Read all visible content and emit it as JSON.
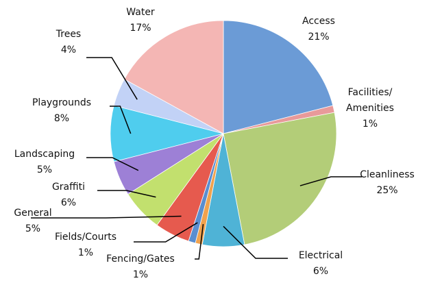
{
  "chart_data": {
    "type": "pie",
    "categories": [
      "Access",
      "Facilities/ Amenities",
      "Cleanliness",
      "Electrical",
      "Fencing/Gates",
      "Fields/Courts",
      "General",
      "Graffiti",
      "Landscaping",
      "Playgrounds",
      "Trees",
      "Water"
    ],
    "values": [
      21,
      1,
      25,
      6,
      1,
      1,
      5,
      6,
      5,
      8,
      4,
      17
    ],
    "value_labels": [
      "21%",
      "1%",
      "25%",
      "6%",
      "1%",
      "1%",
      "5%",
      "6%",
      "5%",
      "8%",
      "4%",
      "17%"
    ],
    "colors": [
      "#6b9bd6",
      "#e89a9a",
      "#b3cd78",
      "#4fb3d6",
      "#f0a24e",
      "#5a8ed0",
      "#e65a4e",
      "#c2e06e",
      "#9d80d6",
      "#4fcdee",
      "#c2d2f6",
      "#f4b6b4"
    ]
  }
}
